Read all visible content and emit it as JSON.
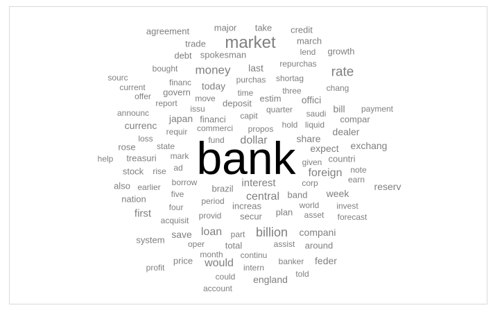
{
  "cloud": {
    "colors": {
      "primary": "#000000",
      "secondary": "#7f7f7f",
      "border": "#d9d9d9"
    },
    "words": [
      "bank",
      "market",
      "rate",
      "money",
      "billion",
      "dollar",
      "central",
      "interest",
      "loan",
      "foreign",
      "would",
      "exchang",
      "last",
      "today",
      "first",
      "week",
      "reserv",
      "england",
      "dealer",
      "share",
      "expect",
      "system",
      "total",
      "around",
      "feder",
      "nation",
      "also",
      "trade",
      "credit",
      "agreement",
      "major",
      "take",
      "march",
      "growth",
      "debt",
      "spokesman",
      "lend",
      "repurchas",
      "bought",
      "sourc",
      "current",
      "financ",
      "govern",
      "purchas",
      "shortag",
      "chang",
      "offer",
      "time",
      "three",
      "offici",
      "report",
      "move",
      "deposit",
      "estim",
      "payment",
      "announc",
      "issu",
      "capit",
      "quarter",
      "saudi",
      "bill",
      "japan",
      "financi",
      "compar",
      "currenc",
      "requir",
      "commerci",
      "propos",
      "hold",
      "liquid",
      "loss",
      "state",
      "fund",
      "rose",
      "mark",
      "help",
      "treasuri",
      "given",
      "countri",
      "stock",
      "rise",
      "ad",
      "note",
      "earlier",
      "borrow",
      "corp",
      "earn",
      "brazil",
      "five",
      "period",
      "band",
      "invest",
      "four",
      "increas",
      "world",
      "acquisit",
      "provid",
      "secur",
      "plan",
      "asset",
      "forecast",
      "save",
      "part",
      "compani",
      "oper",
      "assist",
      "month",
      "continu",
      "price",
      "banker",
      "profit",
      "intern",
      "could",
      "told",
      "account"
    ]
  }
}
